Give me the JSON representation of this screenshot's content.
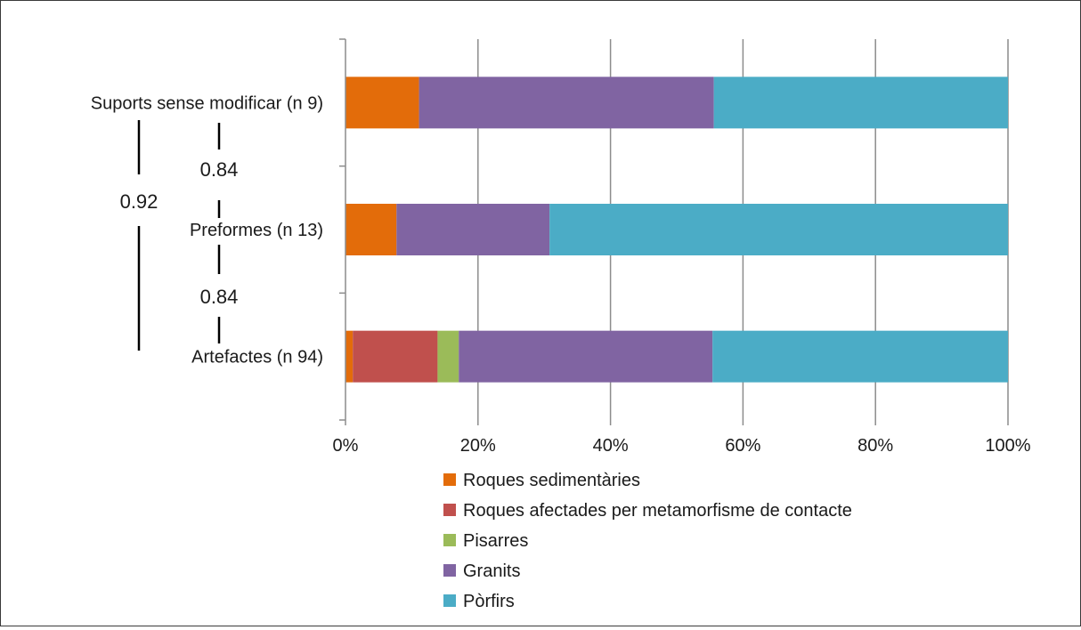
{
  "chart_data": {
    "type": "bar",
    "orientation": "horizontal",
    "stacked": "percent",
    "categories": [
      "Suports sense modificar (n 9)",
      "Preformes (n 13)",
      "Artefactes (n 94)"
    ],
    "series": [
      {
        "name": "Roques sedimentàries",
        "color": "#E36C0A",
        "values": [
          11.1,
          7.7,
          1.1
        ]
      },
      {
        "name": "Roques afectades per metamorfisme de contacte",
        "color": "#C0504D",
        "values": [
          0,
          0,
          12.8
        ]
      },
      {
        "name": "Pisarres",
        "color": "#9BBB59",
        "values": [
          0,
          0,
          3.2
        ]
      },
      {
        "name": "Granits",
        "color": "#8064A2",
        "values": [
          44.5,
          23.1,
          38.3
        ]
      },
      {
        "name": "Pòrfirs",
        "color": "#4BACC6",
        "values": [
          44.4,
          69.2,
          44.6
        ]
      }
    ],
    "x_ticks": [
      "0%",
      "20%",
      "40%",
      "60%",
      "80%",
      "100%"
    ],
    "xlim": [
      0,
      100
    ],
    "grid": "vertical",
    "legend_position": "bottom",
    "similarity_labels": {
      "suports_preformes": "0.84",
      "preformes_artefactes": "0.84",
      "suports_artefactes": "0.92"
    }
  }
}
